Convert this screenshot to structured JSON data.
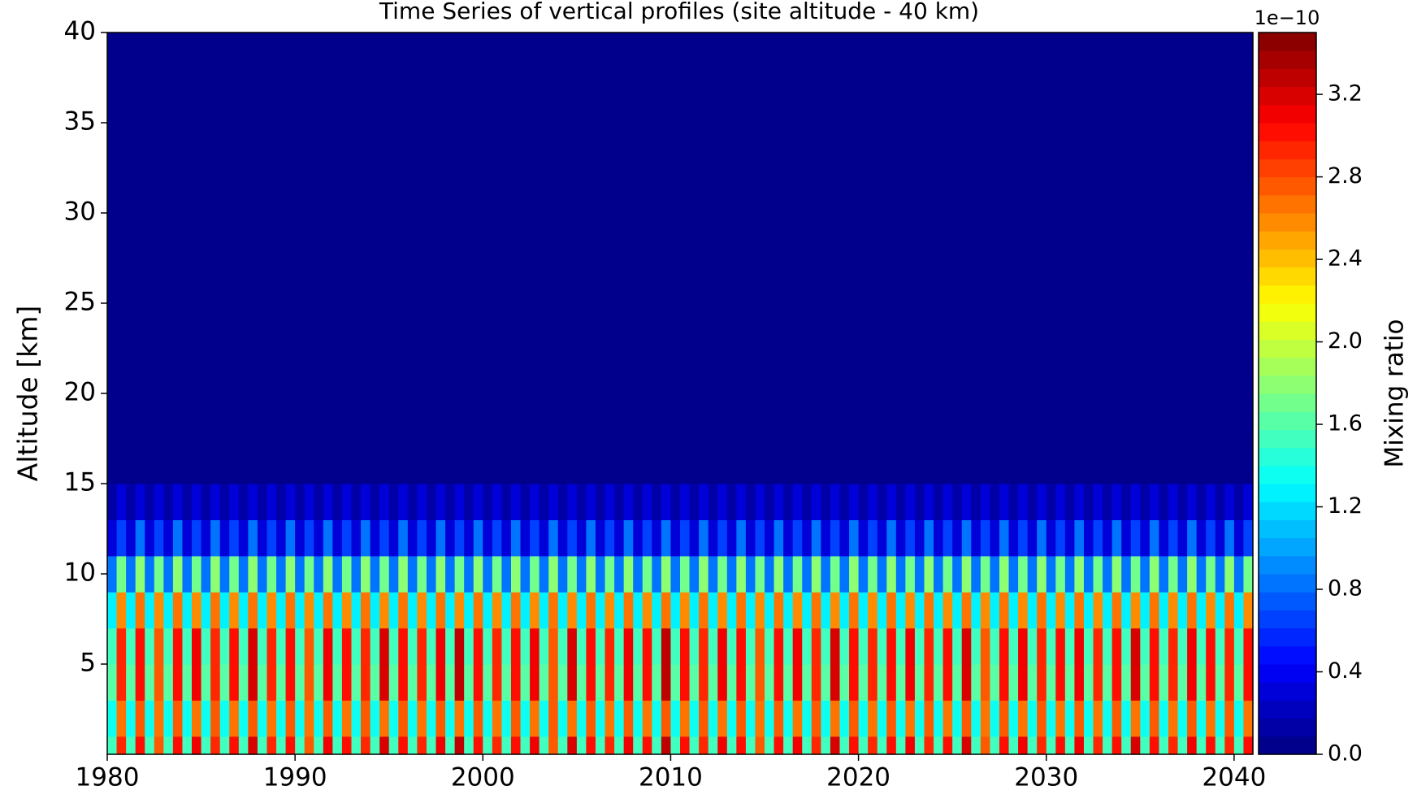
{
  "chart_data": {
    "type": "contourf",
    "title": "Time Series of vertical profiles (site altitude - 40 km)",
    "ylabel": "Altitude [km]",
    "colorbar_label": "Mixing ratio",
    "colorbar_offset": "1e−10",
    "colormap": "jet",
    "x": [
      1980.25,
      1980.75,
      1981.25,
      1981.75,
      1982.25,
      1982.75,
      1983.25,
      1983.75,
      1984.25,
      1984.75,
      1985.25,
      1985.75,
      1986.25,
      1986.75,
      1987.25,
      1987.75,
      1988.25,
      1988.75,
      1989.25,
      1989.75,
      1990.25,
      1990.75,
      1991.25,
      1991.75,
      1992.25,
      1992.75,
      1993.25,
      1993.75,
      1994.25,
      1994.75,
      1995.25,
      1995.75,
      1996.25,
      1996.75,
      1997.25,
      1997.75,
      1998.25,
      1998.75,
      1999.25,
      1999.75,
      2000.25,
      2000.75,
      2001.25,
      2001.75,
      2002.25,
      2002.75,
      2003.25,
      2003.75,
      2004.25,
      2004.75,
      2005.25,
      2005.75,
      2006.25,
      2006.75,
      2007.25,
      2007.75,
      2008.25,
      2008.75,
      2009.25,
      2009.75,
      2010.25,
      2010.75,
      2011.25,
      2011.75,
      2012.25,
      2012.75,
      2013.25,
      2013.75,
      2014.25,
      2014.75,
      2015.25,
      2015.75,
      2016.25,
      2016.75,
      2017.25,
      2017.75,
      2018.25,
      2018.75,
      2019.25,
      2019.75,
      2020.25,
      2020.75,
      2021.25,
      2021.75,
      2022.25,
      2022.75,
      2023.25,
      2023.75,
      2024.25,
      2024.75,
      2025.25,
      2025.75,
      2026.25,
      2026.75,
      2027.25,
      2027.75,
      2028.25,
      2028.75,
      2029.25,
      2029.75,
      2030.25,
      2030.75,
      2031.25,
      2031.75,
      2032.25,
      2032.75,
      2033.25,
      2033.75,
      2034.25,
      2034.75,
      2035.25,
      2035.75,
      2036.25,
      2036.75,
      2037.25,
      2037.75,
      2038.25,
      2038.75,
      2039.25,
      2039.75,
      2040.25,
      2040.75
    ],
    "y": [
      0,
      2,
      4,
      6,
      8,
      10,
      12,
      14,
      16,
      18
    ],
    "z": [
      [
        1.5,
        2.9,
        1.5,
        3.0,
        1.5,
        2.8,
        1.5,
        3.0,
        1.5,
        3.1,
        1.5,
        2.9,
        1.5,
        3.0,
        1.5,
        3.2,
        1.5,
        2.9,
        1.5,
        3.0,
        1.5,
        2.8,
        1.5,
        3.1,
        1.5,
        3.0,
        1.5,
        2.9,
        1.5,
        3.2,
        1.5,
        3.0,
        1.5,
        2.9,
        1.5,
        3.1,
        1.5,
        3.3,
        1.5,
        3.0,
        1.5,
        2.9,
        1.5,
        3.0,
        1.5,
        3.1,
        1.5,
        2.8,
        1.5,
        3.2,
        1.5,
        3.0,
        1.5,
        2.9,
        1.5,
        3.1,
        1.5,
        3.0,
        1.5,
        3.3,
        1.5,
        3.0,
        1.5,
        2.9,
        1.5,
        3.1,
        1.5,
        3.0,
        1.5,
        2.8,
        1.5,
        3.0,
        1.5,
        3.1,
        1.5,
        2.9,
        1.5,
        3.2,
        1.5,
        3.0,
        1.5,
        2.9,
        1.5,
        3.0,
        1.5,
        3.1,
        1.5,
        2.9,
        1.5,
        3.0,
        1.5,
        3.2,
        1.5,
        2.8,
        1.5,
        3.0,
        1.5,
        3.1,
        1.5,
        2.9,
        1.5,
        3.0,
        1.5,
        3.1,
        1.5,
        2.9,
        1.5,
        3.0,
        1.5,
        3.2,
        1.5,
        3.0,
        1.5,
        2.9,
        1.5,
        3.1,
        1.5,
        3.0,
        1.5,
        2.9,
        1.5,
        3.0
      ],
      [
        1.4,
        2.7,
        1.4,
        2.8,
        1.4,
        2.7,
        1.4,
        2.8,
        1.4,
        2.7,
        1.4,
        2.8,
        1.4,
        2.7,
        1.4,
        2.8,
        1.4,
        2.7,
        1.4,
        2.8,
        1.4,
        2.7,
        1.4,
        2.8,
        1.4,
        2.7,
        1.4,
        2.8,
        1.4,
        2.7,
        1.4,
        2.8,
        1.4,
        2.7,
        1.4,
        2.8,
        1.4,
        2.7,
        1.4,
        2.8,
        1.4,
        2.7,
        1.4,
        2.8,
        1.4,
        2.7,
        1.4,
        2.8,
        1.4,
        2.7,
        1.4,
        2.8,
        1.4,
        2.7,
        1.4,
        2.8,
        1.4,
        2.7,
        1.4,
        2.8,
        1.4,
        2.7,
        1.4,
        2.8,
        1.4,
        2.7,
        1.4,
        2.8,
        1.4,
        2.7,
        1.4,
        2.8,
        1.4,
        2.7,
        1.4,
        2.8,
        1.4,
        2.7,
        1.4,
        2.8,
        1.4,
        2.7,
        1.4,
        2.8,
        1.4,
        2.7,
        1.4,
        2.8,
        1.4,
        2.7,
        1.4,
        2.8,
        1.4,
        2.7,
        1.4,
        2.8,
        1.4,
        2.7,
        1.4,
        2.8,
        1.4,
        2.7,
        1.4,
        2.8,
        1.4,
        2.7,
        1.4,
        2.8,
        1.4,
        2.7,
        1.4,
        2.8,
        1.4,
        2.7,
        1.4,
        2.8,
        1.4,
        2.7,
        1.4,
        2.8,
        1.4,
        2.7
      ],
      [
        1.6,
        2.9,
        1.6,
        3.0,
        1.6,
        2.8,
        1.6,
        3.0,
        1.6,
        3.1,
        1.6,
        2.9,
        1.6,
        3.0,
        1.6,
        3.2,
        1.6,
        2.9,
        1.6,
        3.0,
        1.6,
        2.8,
        1.6,
        3.1,
        1.6,
        3.0,
        1.6,
        2.9,
        1.6,
        3.2,
        1.6,
        3.0,
        1.6,
        2.9,
        1.6,
        3.1,
        1.6,
        3.3,
        1.6,
        3.0,
        1.6,
        2.9,
        1.6,
        3.0,
        1.6,
        3.1,
        1.6,
        2.8,
        1.6,
        3.2,
        1.6,
        3.0,
        1.6,
        2.9,
        1.6,
        3.1,
        1.6,
        3.0,
        1.6,
        3.3,
        1.6,
        3.0,
        1.6,
        2.9,
        1.6,
        3.1,
        1.6,
        3.0,
        1.6,
        2.8,
        1.6,
        3.0,
        1.6,
        3.1,
        1.6,
        2.9,
        1.6,
        3.2,
        1.6,
        3.0,
        1.6,
        2.9,
        1.6,
        3.0,
        1.6,
        3.1,
        1.6,
        2.9,
        1.6,
        3.0,
        1.6,
        3.2,
        1.6,
        2.8,
        1.6,
        3.0,
        1.6,
        3.1,
        1.6,
        2.9,
        1.6,
        3.0,
        1.6,
        3.1,
        1.6,
        2.9,
        1.6,
        3.0,
        1.6,
        3.2,
        1.6,
        3.0,
        1.6,
        2.9,
        1.6,
        3.1,
        1.6,
        3.0,
        1.6,
        2.9,
        1.6,
        3.0
      ],
      [
        1.5,
        2.9,
        1.5,
        3.0,
        1.5,
        2.8,
        1.5,
        3.0,
        1.5,
        3.1,
        1.5,
        2.9,
        1.5,
        3.0,
        1.5,
        3.2,
        1.5,
        2.9,
        1.5,
        3.0,
        1.5,
        2.8,
        1.5,
        3.1,
        1.5,
        3.0,
        1.5,
        2.9,
        1.5,
        3.2,
        1.5,
        3.0,
        1.5,
        2.9,
        1.5,
        3.1,
        1.5,
        3.3,
        1.5,
        3.0,
        1.5,
        2.9,
        1.5,
        3.0,
        1.5,
        3.1,
        1.5,
        2.8,
        1.5,
        3.2,
        1.5,
        3.0,
        1.5,
        2.9,
        1.5,
        3.1,
        1.5,
        3.0,
        1.5,
        3.3,
        1.5,
        3.0,
        1.5,
        2.9,
        1.5,
        3.1,
        1.5,
        3.0,
        1.5,
        2.8,
        1.5,
        3.0,
        1.5,
        3.1,
        1.5,
        2.9,
        1.5,
        3.2,
        1.5,
        3.0,
        1.5,
        2.9,
        1.5,
        3.0,
        1.5,
        3.1,
        1.5,
        2.9,
        1.5,
        3.0,
        1.5,
        3.2,
        1.5,
        2.8,
        1.5,
        3.0,
        1.5,
        3.1,
        1.5,
        2.9,
        1.5,
        3.0,
        1.5,
        3.1,
        1.5,
        2.9,
        1.5,
        3.0,
        1.5,
        3.2,
        1.5,
        3.0,
        1.5,
        2.9,
        1.5,
        3.1,
        1.5,
        3.0,
        1.5,
        2.9,
        1.5,
        3.0
      ],
      [
        1.3,
        2.6,
        1.3,
        2.7,
        1.3,
        2.6,
        1.3,
        2.7,
        1.3,
        2.6,
        1.3,
        2.7,
        1.3,
        2.6,
        1.3,
        2.7,
        1.3,
        2.6,
        1.3,
        2.7,
        1.3,
        2.6,
        1.3,
        2.7,
        1.3,
        2.6,
        1.3,
        2.7,
        1.3,
        2.6,
        1.3,
        2.7,
        1.3,
        2.6,
        1.3,
        2.7,
        1.3,
        2.6,
        1.3,
        2.7,
        1.3,
        2.6,
        1.3,
        2.7,
        1.3,
        2.6,
        1.3,
        2.7,
        1.3,
        2.6,
        1.3,
        2.7,
        1.3,
        2.6,
        1.3,
        2.7,
        1.3,
        2.6,
        1.3,
        2.7,
        1.3,
        2.6,
        1.3,
        2.7,
        1.3,
        2.6,
        1.3,
        2.7,
        1.3,
        2.6,
        1.3,
        2.7,
        1.3,
        2.6,
        1.3,
        2.7,
        1.3,
        2.6,
        1.3,
        2.7,
        1.3,
        2.6,
        1.3,
        2.7,
        1.3,
        2.6,
        1.3,
        2.7,
        1.3,
        2.6,
        1.3,
        2.7,
        1.3,
        2.6,
        1.3,
        2.7,
        1.3,
        2.6,
        1.3,
        2.7,
        1.3,
        2.6,
        1.3,
        2.7,
        1.3,
        2.6,
        1.3,
        2.7,
        1.3,
        2.6,
        1.3,
        2.7,
        1.3,
        2.6,
        1.3,
        2.7,
        1.3,
        2.6,
        1.3,
        2.7,
        1.3,
        2.6
      ],
      [
        0.8,
        1.7,
        0.8,
        1.8,
        0.8,
        1.7,
        0.8,
        1.8,
        0.8,
        1.7,
        0.8,
        1.8,
        0.8,
        1.7,
        0.8,
        1.8,
        0.8,
        1.7,
        0.8,
        1.8,
        0.8,
        1.7,
        0.8,
        1.8,
        0.8,
        1.7,
        0.8,
        1.8,
        0.8,
        1.7,
        0.8,
        1.8,
        0.8,
        1.7,
        0.8,
        1.8,
        0.8,
        1.7,
        0.8,
        1.8,
        0.8,
        1.7,
        0.8,
        1.8,
        0.8,
        1.7,
        0.8,
        1.8,
        0.8,
        1.7,
        0.8,
        1.8,
        0.8,
        1.7,
        0.8,
        1.8,
        0.8,
        1.7,
        0.8,
        1.8,
        0.8,
        1.7,
        0.8,
        1.8,
        0.8,
        1.7,
        0.8,
        1.8,
        0.8,
        1.7,
        0.8,
        1.8,
        0.8,
        1.7,
        0.8,
        1.8,
        0.8,
        1.7,
        0.8,
        1.8,
        0.8,
        1.7,
        0.8,
        1.8,
        0.8,
        1.7,
        0.8,
        1.8,
        0.8,
        1.7,
        0.8,
        1.8,
        0.8,
        1.7,
        0.8,
        1.8,
        0.8,
        1.7,
        0.8,
        1.8,
        0.8,
        1.7,
        0.8,
        1.8,
        0.8,
        1.7,
        0.8,
        1.8,
        0.8,
        1.7,
        0.8,
        1.8,
        0.8,
        1.7,
        0.8,
        1.8,
        0.8,
        1.7,
        0.8,
        1.8,
        0.8,
        1.7
      ],
      [
        0.35,
        0.7,
        0.35,
        0.8,
        0.35,
        0.7,
        0.35,
        0.8,
        0.35,
        0.7,
        0.35,
        0.8,
        0.35,
        0.7,
        0.35,
        0.8,
        0.35,
        0.7,
        0.35,
        0.8,
        0.35,
        0.7,
        0.35,
        0.8,
        0.35,
        0.7,
        0.35,
        0.8,
        0.35,
        0.7,
        0.35,
        0.8,
        0.35,
        0.7,
        0.35,
        0.8,
        0.35,
        0.7,
        0.35,
        0.8,
        0.35,
        0.7,
        0.35,
        0.8,
        0.35,
        0.7,
        0.35,
        0.8,
        0.35,
        0.7,
        0.35,
        0.8,
        0.35,
        0.7,
        0.35,
        0.8,
        0.35,
        0.7,
        0.35,
        0.8,
        0.35,
        0.7,
        0.35,
        0.8,
        0.35,
        0.7,
        0.35,
        0.8,
        0.35,
        0.7,
        0.35,
        0.8,
        0.35,
        0.7,
        0.35,
        0.8,
        0.35,
        0.7,
        0.35,
        0.8,
        0.35,
        0.7,
        0.35,
        0.8,
        0.35,
        0.7,
        0.35,
        0.8,
        0.35,
        0.7,
        0.35,
        0.8,
        0.35,
        0.7,
        0.35,
        0.8,
        0.35,
        0.7,
        0.35,
        0.8,
        0.35,
        0.7,
        0.35,
        0.8,
        0.35,
        0.7,
        0.35,
        0.8,
        0.35,
        0.7,
        0.35,
        0.8,
        0.35,
        0.7,
        0.35,
        0.8,
        0.35,
        0.7,
        0.35,
        0.8,
        0.35,
        0.7
      ],
      [
        0.15,
        0.35,
        0.15,
        0.3,
        0.15,
        0.35,
        0.15,
        0.3,
        0.15,
        0.35,
        0.15,
        0.3,
        0.15,
        0.35,
        0.15,
        0.3,
        0.15,
        0.35,
        0.15,
        0.3,
        0.15,
        0.35,
        0.15,
        0.3,
        0.15,
        0.35,
        0.15,
        0.3,
        0.15,
        0.35,
        0.15,
        0.3,
        0.15,
        0.35,
        0.15,
        0.3,
        0.15,
        0.35,
        0.15,
        0.3,
        0.15,
        0.35,
        0.15,
        0.3,
        0.15,
        0.35,
        0.15,
        0.3,
        0.15,
        0.35,
        0.15,
        0.3,
        0.15,
        0.35,
        0.15,
        0.3,
        0.15,
        0.35,
        0.15,
        0.3,
        0.15,
        0.35,
        0.15,
        0.3,
        0.15,
        0.35,
        0.15,
        0.3,
        0.15,
        0.35,
        0.15,
        0.3,
        0.15,
        0.35,
        0.15,
        0.3,
        0.15,
        0.35,
        0.15,
        0.3,
        0.15,
        0.35,
        0.15,
        0.3,
        0.15,
        0.35,
        0.15,
        0.3,
        0.15,
        0.35,
        0.15,
        0.3,
        0.15,
        0.35,
        0.15,
        0.3,
        0.15,
        0.35,
        0.15,
        0.3,
        0.15,
        0.35,
        0.15,
        0.3,
        0.15,
        0.35,
        0.15,
        0.3,
        0.15,
        0.35,
        0.15,
        0.3,
        0.15,
        0.35,
        0.15,
        0.3,
        0.15,
        0.35,
        0.15,
        0.3,
        0.15,
        0.35
      ],
      [
        0.02,
        0.08,
        0.02,
        0.05,
        0.02,
        0.08,
        0.02,
        0.05,
        0.02,
        0.08,
        0.02,
        0.05,
        0.02,
        0.08,
        0.02,
        0.05,
        0.02,
        0.08,
        0.02,
        0.05,
        0.02,
        0.08,
        0.02,
        0.05,
        0.02,
        0.08,
        0.02,
        0.05,
        0.02,
        0.08,
        0.02,
        0.05,
        0.02,
        0.08,
        0.02,
        0.05,
        0.02,
        0.08,
        0.02,
        0.05,
        0.02,
        0.08,
        0.02,
        0.05,
        0.02,
        0.08,
        0.02,
        0.05,
        0.02,
        0.08,
        0.02,
        0.05,
        0.02,
        0.08,
        0.02,
        0.05,
        0.02,
        0.08,
        0.02,
        0.05,
        0.02,
        0.08,
        0.02,
        0.05,
        0.02,
        0.08,
        0.02,
        0.05,
        0.02,
        0.08,
        0.02,
        0.05,
        0.02,
        0.08,
        0.02,
        0.05,
        0.02,
        0.08,
        0.02,
        0.05,
        0.02,
        0.08,
        0.02,
        0.05,
        0.02,
        0.08,
        0.02,
        0.05,
        0.02,
        0.08,
        0.02,
        0.05,
        0.02,
        0.08,
        0.02,
        0.05,
        0.02,
        0.08,
        0.02,
        0.05,
        0.02,
        0.08,
        0.02,
        0.05,
        0.02,
        0.08,
        0.02,
        0.05,
        0.02,
        0.08,
        0.02,
        0.05,
        0.02,
        0.08,
        0.02,
        0.05,
        0.02,
        0.08,
        0.02,
        0.05,
        0.02,
        0.08
      ],
      [
        0,
        0,
        0,
        0,
        0,
        0,
        0,
        0,
        0,
        0,
        0,
        0,
        0,
        0,
        0,
        0,
        0,
        0,
        0,
        0,
        0,
        0,
        0,
        0,
        0,
        0,
        0,
        0,
        0,
        0,
        0,
        0,
        0,
        0,
        0,
        0,
        0,
        0,
        0,
        0,
        0,
        0,
        0,
        0,
        0,
        0,
        0,
        0,
        0,
        0,
        0,
        0,
        0,
        0,
        0,
        0,
        0,
        0,
        0,
        0,
        0,
        0,
        0,
        0,
        0,
        0,
        0,
        0,
        0,
        0,
        0,
        0,
        0,
        0,
        0,
        0,
        0,
        0,
        0,
        0,
        0,
        0,
        0,
        0,
        0,
        0,
        0,
        0,
        0,
        0,
        0,
        0,
        0,
        0,
        0,
        0,
        0,
        0,
        0,
        0,
        0,
        0,
        0,
        0,
        0,
        0,
        0,
        0,
        0,
        0,
        0,
        0,
        0,
        0,
        0,
        0,
        0,
        0,
        0,
        0,
        0,
        0
      ]
    ],
    "xlim": [
      1980,
      2041
    ],
    "ylim": [
      0,
      40
    ],
    "xticks": [
      1980,
      1990,
      2000,
      2010,
      2020,
      2030,
      2040
    ],
    "yticks": [
      5,
      10,
      15,
      20,
      25,
      30,
      35,
      40
    ],
    "clim": [
      0,
      3.5
    ],
    "cticks": [
      {
        "value": 0,
        "label": "0.0"
      },
      {
        "value": 0.4,
        "label": "0.4"
      },
      {
        "value": 0.8,
        "label": "0.8"
      },
      {
        "value": 1.2,
        "label": "1.2"
      },
      {
        "value": 1.6,
        "label": "1.6"
      },
      {
        "value": 2.0,
        "label": "2.0"
      },
      {
        "value": 2.4,
        "label": "2.4"
      },
      {
        "value": 2.8,
        "label": "2.8"
      },
      {
        "value": 3.2,
        "label": "3.2"
      }
    ]
  }
}
